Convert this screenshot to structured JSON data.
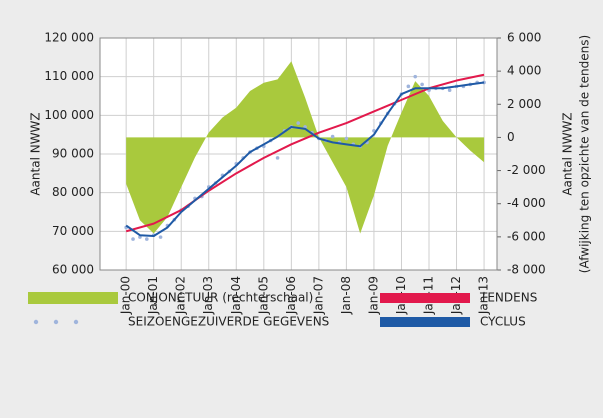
{
  "chart_data": {
    "type": "line",
    "ylabel": "Aantal NWWZ",
    "y2label": [
      "Aantal NWWZ",
      "(Afwijking ten opzichte van de tendens)"
    ],
    "xlim": [
      1999.05,
      2013.47
    ],
    "xticks": [
      {
        "value": 2000,
        "label": "Jan-00"
      },
      {
        "value": 2001,
        "label": "Jan-01"
      },
      {
        "value": 2002,
        "label": "Jan-02"
      },
      {
        "value": 2003,
        "label": "Jan-03"
      },
      {
        "value": 2004,
        "label": "Jan-04"
      },
      {
        "value": 2005,
        "label": "Jan-05"
      },
      {
        "value": 2006,
        "label": "Jan-06"
      },
      {
        "value": 2007,
        "label": "Jan-07"
      },
      {
        "value": 2008,
        "label": "Jan-08"
      },
      {
        "value": 2009,
        "label": "Jan-09"
      },
      {
        "value": 2010,
        "label": "Jan-10"
      },
      {
        "value": 2011,
        "label": "Jan-11"
      },
      {
        "value": 2012,
        "label": "Jan-12"
      },
      {
        "value": 2013,
        "label": "Jan-13"
      }
    ],
    "ylim": [
      60000,
      120000
    ],
    "yticks": [
      {
        "value": 60000,
        "label": "60 000"
      },
      {
        "value": 70000,
        "label": "70 000"
      },
      {
        "value": 80000,
        "label": "80 000"
      },
      {
        "value": 90000,
        "label": "90 000"
      },
      {
        "value": 100000,
        "label": "100 000"
      },
      {
        "value": 110000,
        "label": "110 000"
      },
      {
        "value": 120000,
        "label": "120 000"
      }
    ],
    "y2lim": [
      -8000,
      6000
    ],
    "y2ticks": [
      {
        "value": -8000,
        "label": "-8 000"
      },
      {
        "value": -6000,
        "label": "-6 000"
      },
      {
        "value": -4000,
        "label": "-4 000"
      },
      {
        "value": -2000,
        "label": "-2 000"
      },
      0,
      {
        "value": 2000,
        "label": "2 000"
      },
      {
        "value": 4000,
        "label": "4 000"
      },
      {
        "value": 6000,
        "label": "6 000"
      }
    ],
    "grid": true,
    "series": [
      {
        "name": "CONJONCTUUR (rechterschaal)",
        "type": "area",
        "axis": "y2",
        "color": "#a9c93d",
        "x": [
          2000,
          2000.5,
          2001,
          2001.5,
          2002,
          2002.5,
          2003,
          2003.5,
          2004,
          2004.5,
          2005,
          2005.5,
          2006,
          2006.5,
          2007,
          2007.5,
          2008,
          2008.5,
          2009,
          2009.5,
          2010,
          2010.5,
          2011,
          2011.5,
          2012,
          2012.5,
          2013
        ],
        "values": [
          -2800,
          -5000,
          -5800,
          -4800,
          -3000,
          -1200,
          300,
          1200,
          1800,
          2800,
          3300,
          3500,
          4600,
          2400,
          0,
          -1500,
          -3000,
          -5800,
          -3500,
          -500,
          1500,
          3400,
          2500,
          1000,
          0,
          -800,
          -1500
        ]
      },
      {
        "name": "SEIZOENGEZUIVERDE GEGEVENS",
        "type": "scatter",
        "color": "#9fb4dc",
        "x": [
          2000,
          2000.25,
          2000.5,
          2000.75,
          2001,
          2001.25,
          2001.5,
          2001.75,
          2002,
          2002.25,
          2002.5,
          2002.75,
          2003,
          2003.25,
          2003.5,
          2003.75,
          2004,
          2004.25,
          2004.5,
          2004.75,
          2005,
          2005.25,
          2005.5,
          2005.75,
          2006,
          2006.25,
          2006.5,
          2006.75,
          2007,
          2007.25,
          2007.5,
          2007.75,
          2008,
          2008.25,
          2008.5,
          2008.75,
          2009,
          2009.25,
          2009.5,
          2009.75,
          2010,
          2010.25,
          2010.5,
          2010.75,
          2011,
          2011.25,
          2011.5,
          2011.75,
          2012,
          2012.25,
          2012.5,
          2012.75,
          2013
        ],
        "values": [
          71000,
          68000,
          68500,
          68000,
          69000,
          68500,
          71500,
          73000,
          75500,
          76500,
          78500,
          79000,
          81500,
          82500,
          84500,
          85500,
          87500,
          89000,
          90500,
          91500,
          92000,
          93500,
          89000,
          96000,
          97000,
          98000,
          97000,
          95500,
          94000,
          93500,
          94500,
          93000,
          94000,
          92500,
          92000,
          93000,
          96000,
          98000,
          100500,
          103000,
          105500,
          107500,
          110000,
          108000,
          106500,
          107000,
          107000,
          106500,
          107500,
          107500,
          108000,
          108500,
          108500
        ]
      },
      {
        "name": "TENDENS",
        "type": "line",
        "color": "#e2194c",
        "x": [
          2000,
          2001,
          2002,
          2003,
          2004,
          2005,
          2006,
          2007,
          2008,
          2009,
          2010,
          2011,
          2012,
          2013
        ],
        "values": [
          70000,
          72000,
          75500,
          80500,
          85000,
          89000,
          92500,
          95500,
          98000,
          101000,
          104000,
          107000,
          109000,
          110500
        ]
      },
      {
        "name": "CYCLUS",
        "type": "line",
        "color": "#1f5aa6",
        "x": [
          2000,
          2000.5,
          2001,
          2001.5,
          2002,
          2002.5,
          2003,
          2003.5,
          2004,
          2004.5,
          2005,
          2005.5,
          2006,
          2006.5,
          2007,
          2007.5,
          2008,
          2008.5,
          2009,
          2009.5,
          2010,
          2010.5,
          2011,
          2011.5,
          2012,
          2012.5,
          2013
        ],
        "values": [
          71500,
          69000,
          68800,
          71000,
          75000,
          78000,
          81000,
          84000,
          87000,
          90500,
          92500,
          94500,
          97000,
          96500,
          94000,
          93000,
          92500,
          92000,
          95000,
          100500,
          105500,
          107000,
          107000,
          107000,
          107500,
          108000,
          108500
        ]
      }
    ]
  }
}
